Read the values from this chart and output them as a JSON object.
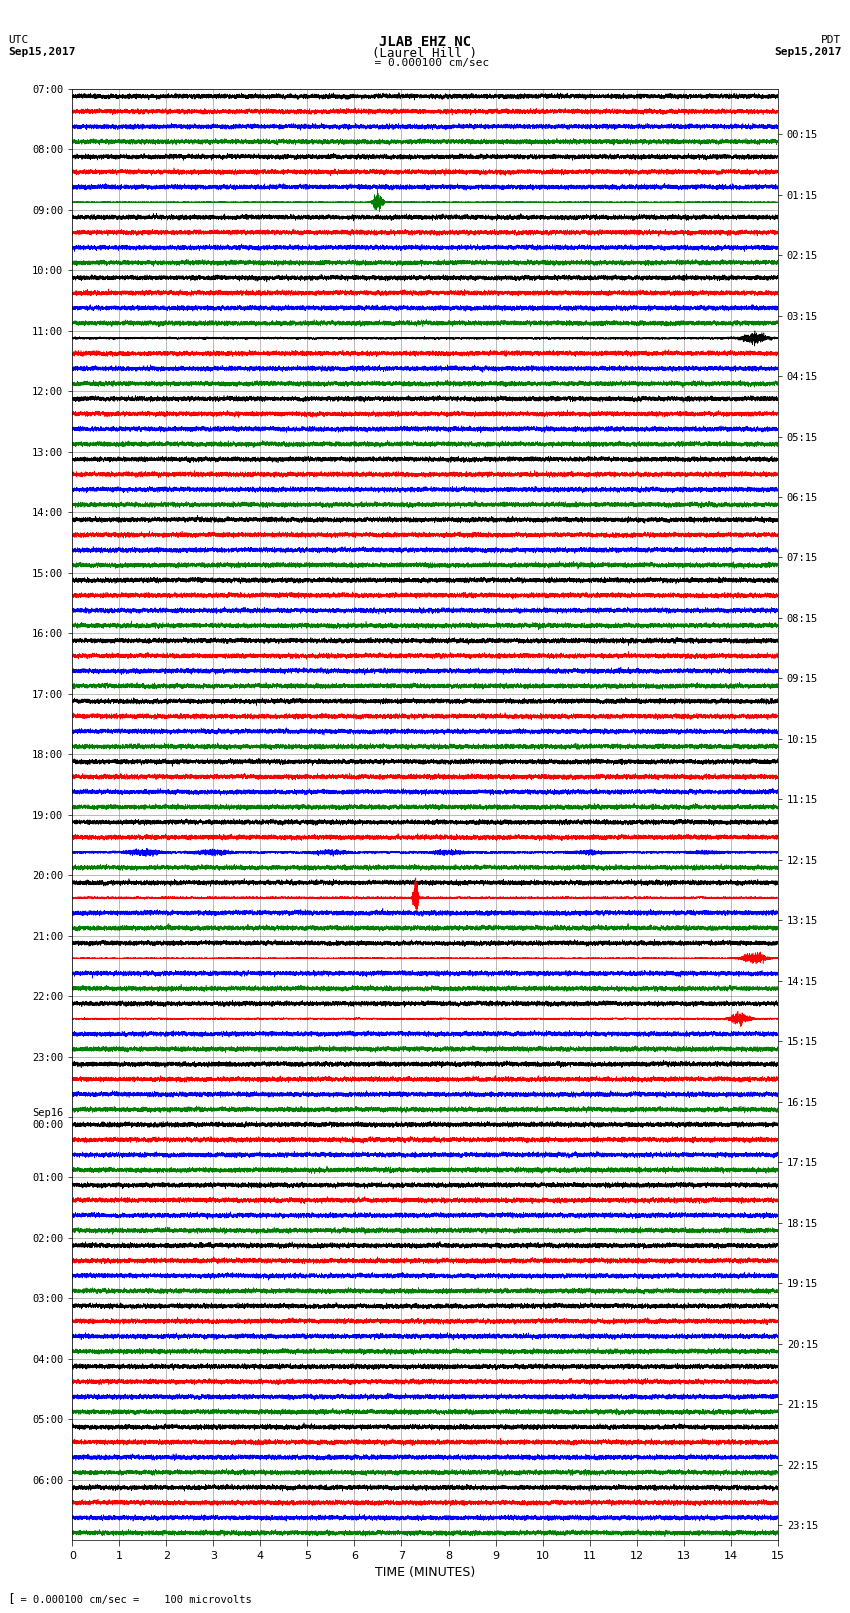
{
  "title_line1": "JLAB EHZ NC",
  "title_line2": "(Laurel Hill )",
  "scale_label": "= 0.000100 cm/sec",
  "left_timezone": "UTC",
  "left_date": "Sep15,2017",
  "right_timezone": "PDT",
  "right_date": "Sep15,2017",
  "left_times": [
    "07:00",
    "08:00",
    "09:00",
    "10:00",
    "11:00",
    "12:00",
    "13:00",
    "14:00",
    "15:00",
    "16:00",
    "17:00",
    "18:00",
    "19:00",
    "20:00",
    "21:00",
    "22:00",
    "23:00",
    "Sep16\n00:00",
    "01:00",
    "02:00",
    "03:00",
    "04:00",
    "05:00",
    "06:00"
  ],
  "right_times": [
    "00:15",
    "01:15",
    "02:15",
    "03:15",
    "04:15",
    "05:15",
    "06:15",
    "07:15",
    "08:15",
    "09:15",
    "10:15",
    "11:15",
    "12:15",
    "13:15",
    "14:15",
    "15:15",
    "16:15",
    "17:15",
    "18:15",
    "19:15",
    "20:15",
    "21:15",
    "22:15",
    "23:15"
  ],
  "n_rows": 24,
  "traces_per_row": 4,
  "colors": [
    "black",
    "red",
    "blue",
    "green"
  ],
  "duration_minutes": 15,
  "sps": 100,
  "xlabel": "TIME (MINUTES)",
  "bottom_label": "= 0.000100 cm/sec =    100 microvolts",
  "background_color": "#ffffff",
  "fig_width": 8.5,
  "fig_height": 16.13
}
